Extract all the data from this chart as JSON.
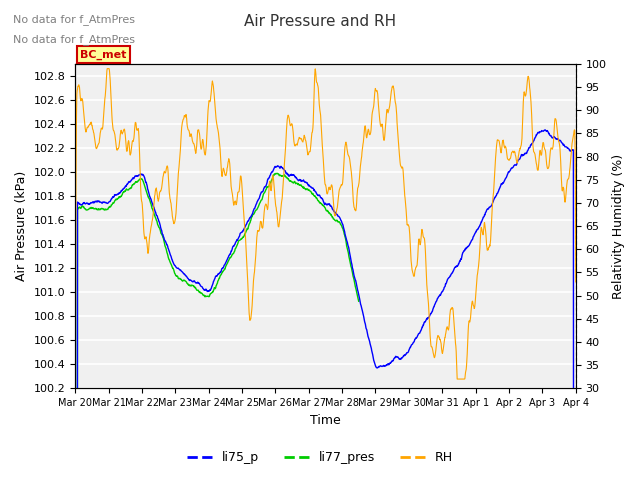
{
  "title": "Air Pressure and RH",
  "xlabel": "Time",
  "ylabel_left": "Air Pressure (kPa)",
  "ylabel_right": "Relativity Humidity (%)",
  "annotation1": "No data for f_AtmPres",
  "annotation2": "No data for f_AtmPres",
  "bc_met_label": "BC_met",
  "ylim_left": [
    100.2,
    102.9
  ],
  "ylim_right": [
    30,
    100
  ],
  "yticks_left": [
    100.2,
    100.4,
    100.6,
    100.8,
    101.0,
    101.2,
    101.4,
    101.6,
    101.8,
    102.0,
    102.2,
    102.4,
    102.6,
    102.8
  ],
  "yticks_right": [
    30,
    35,
    40,
    45,
    50,
    55,
    60,
    65,
    70,
    75,
    80,
    85,
    90,
    95,
    100
  ],
  "xtick_labels": [
    "Mar 20",
    "Mar 21",
    "Mar 22",
    "Mar 23",
    "Mar 24",
    "Mar 25",
    "Mar 26",
    "Mar 27",
    "Mar 28",
    "Mar 29",
    "Mar 30",
    "Mar 31",
    "Apr 1",
    "Apr 2",
    "Apr 3",
    "Apr 4"
  ],
  "legend_labels": [
    "li75_p",
    "li77_pres",
    "RH"
  ],
  "legend_colors": [
    "#0000ff",
    "#00cc00",
    "#ffa500"
  ],
  "line_color_li75": "#0000ff",
  "line_color_li77": "#00cc00",
  "line_color_rh": "#ffa500",
  "background_color": "#ffffff",
  "plot_bg_color": "#f0f0f0",
  "grid_color": "#ffffff",
  "annotation_color": "#808080",
  "bc_met_box_color": "#ffff99",
  "bc_met_text_color": "#cc0000",
  "n_points": 1500
}
